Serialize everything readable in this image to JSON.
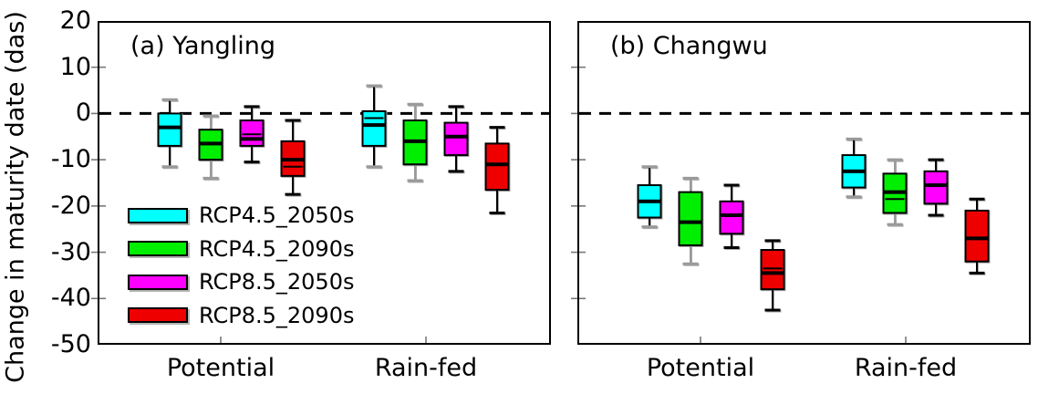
{
  "figure": {
    "ylabel": "Change in maturity date (das)",
    "y_tick_labels": [
      "20",
      "10",
      "0",
      "-10",
      "-20",
      "-30",
      "-40",
      "-50"
    ],
    "y_tick_values": [
      20,
      10,
      0,
      -10,
      -20,
      -30,
      -40,
      -50
    ],
    "ylim": [
      -50,
      20
    ],
    "zero_line_value": 0,
    "background_color": "#ffffff",
    "frame_color": "#000000",
    "tick_color": "#777777"
  },
  "legend": {
    "position": "inside bottom-left of panel (a)",
    "items": [
      {
        "label": "RCP4.5_2050s",
        "color": "#00ffff"
      },
      {
        "label": "RCP4.5_2090s",
        "color": "#00ee00"
      },
      {
        "label": "RCP8.5_2050s",
        "color": "#ff00ff"
      },
      {
        "label": "RCP8.5_2090s",
        "color": "#ee0000"
      }
    ]
  },
  "chart_data": [
    {
      "type": "boxplot",
      "title": "(a) Yangling",
      "categories": [
        "Potential",
        "Rain-fed"
      ],
      "ylim": [
        -50,
        20
      ],
      "grid": false,
      "series": [
        {
          "name": "RCP4.5_2050s",
          "color": "#00ffff",
          "whisker_stem_color": "#000000",
          "whisker_cap_color": "#9a9a9a",
          "boxes": [
            {
              "category": "Potential",
              "whisker_low": -11.5,
              "q1": -7,
              "median": -3,
              "q3": 0,
              "whisker_high": 3,
              "mean": null
            },
            {
              "category": "Rain-fed",
              "whisker_low": -11.5,
              "q1": -7,
              "median": -2.5,
              "q3": 0.5,
              "whisker_high": 6,
              "mean": -1
            }
          ]
        },
        {
          "name": "RCP4.5_2090s",
          "color": "#00ee00",
          "whisker_stem_color": "#9a9a9a",
          "whisker_cap_color": "#9a9a9a",
          "boxes": [
            {
              "category": "Potential",
              "whisker_low": -14,
              "q1": -10,
              "median": -6.5,
              "q3": -3.5,
              "whisker_high": -0.5,
              "mean": null
            },
            {
              "category": "Rain-fed",
              "whisker_low": -14.5,
              "q1": -11,
              "median": -6,
              "q3": -1.5,
              "whisker_high": 2,
              "mean": null
            }
          ]
        },
        {
          "name": "RCP8.5_2050s",
          "color": "#ff00ff",
          "whisker_stem_color": "#000000",
          "whisker_cap_color": "#000000",
          "boxes": [
            {
              "category": "Potential",
              "whisker_low": -10.5,
              "q1": -7,
              "median": -5.5,
              "q3": -1.5,
              "whisker_high": 1.5,
              "mean": -4.5
            },
            {
              "category": "Rain-fed",
              "whisker_low": -12.5,
              "q1": -9,
              "median": -5,
              "q3": -2,
              "whisker_high": 1.5,
              "mean": null
            }
          ]
        },
        {
          "name": "RCP8.5_2090s",
          "color": "#ee0000",
          "whisker_stem_color": "#000000",
          "whisker_cap_color": "#000000",
          "boxes": [
            {
              "category": "Potential",
              "whisker_low": -17.5,
              "q1": -13.5,
              "median": -10,
              "q3": -6,
              "whisker_high": -1.5,
              "mean": -11.5
            },
            {
              "category": "Rain-fed",
              "whisker_low": -21.5,
              "q1": -16.5,
              "median": -11,
              "q3": -6.5,
              "whisker_high": -3,
              "mean": null
            }
          ]
        }
      ]
    },
    {
      "type": "boxplot",
      "title": "(b) Changwu",
      "categories": [
        "Potential",
        "Rain-fed"
      ],
      "ylim": [
        -50,
        20
      ],
      "grid": false,
      "series": [
        {
          "name": "RCP4.5_2050s",
          "color": "#00ffff",
          "whisker_stem_color": "#000000",
          "whisker_cap_color": "#9a9a9a",
          "boxes": [
            {
              "category": "Potential",
              "whisker_low": -24.5,
              "q1": -22.5,
              "median": -19,
              "q3": -15.5,
              "whisker_high": -11.5,
              "mean": null
            },
            {
              "category": "Rain-fed",
              "whisker_low": -18,
              "q1": -16,
              "median": -12.5,
              "q3": -9,
              "whisker_high": -5.5,
              "mean": null
            }
          ]
        },
        {
          "name": "RCP4.5_2090s",
          "color": "#00ee00",
          "whisker_stem_color": "#9a9a9a",
          "whisker_cap_color": "#9a9a9a",
          "boxes": [
            {
              "category": "Potential",
              "whisker_low": -32.5,
              "q1": -28.5,
              "median": -23.5,
              "q3": -17,
              "whisker_high": -14,
              "mean": null
            },
            {
              "category": "Rain-fed",
              "whisker_low": -24,
              "q1": -21.5,
              "median": -17,
              "q3": -13,
              "whisker_high": -10,
              "mean": -18.5
            }
          ]
        },
        {
          "name": "RCP8.5_2050s",
          "color": "#ff00ff",
          "whisker_stem_color": "#000000",
          "whisker_cap_color": "#000000",
          "boxes": [
            {
              "category": "Potential",
              "whisker_low": -29,
              "q1": -26,
              "median": -22,
              "q3": -19,
              "whisker_high": -15.5,
              "mean": null
            },
            {
              "category": "Rain-fed",
              "whisker_low": -22,
              "q1": -19.5,
              "median": -15.5,
              "q3": -12.5,
              "whisker_high": -10,
              "mean": null
            }
          ]
        },
        {
          "name": "RCP8.5_2090s",
          "color": "#ee0000",
          "whisker_stem_color": "#000000",
          "whisker_cap_color": "#000000",
          "boxes": [
            {
              "category": "Potential",
              "whisker_low": -42.5,
              "q1": -38,
              "median": -34.5,
              "q3": -29.5,
              "whisker_high": -27.5,
              "mean": -33.5
            },
            {
              "category": "Rain-fed",
              "whisker_low": -34.5,
              "q1": -32,
              "median": -27,
              "q3": -21,
              "whisker_high": -18.5,
              "mean": null
            }
          ]
        }
      ]
    }
  ]
}
